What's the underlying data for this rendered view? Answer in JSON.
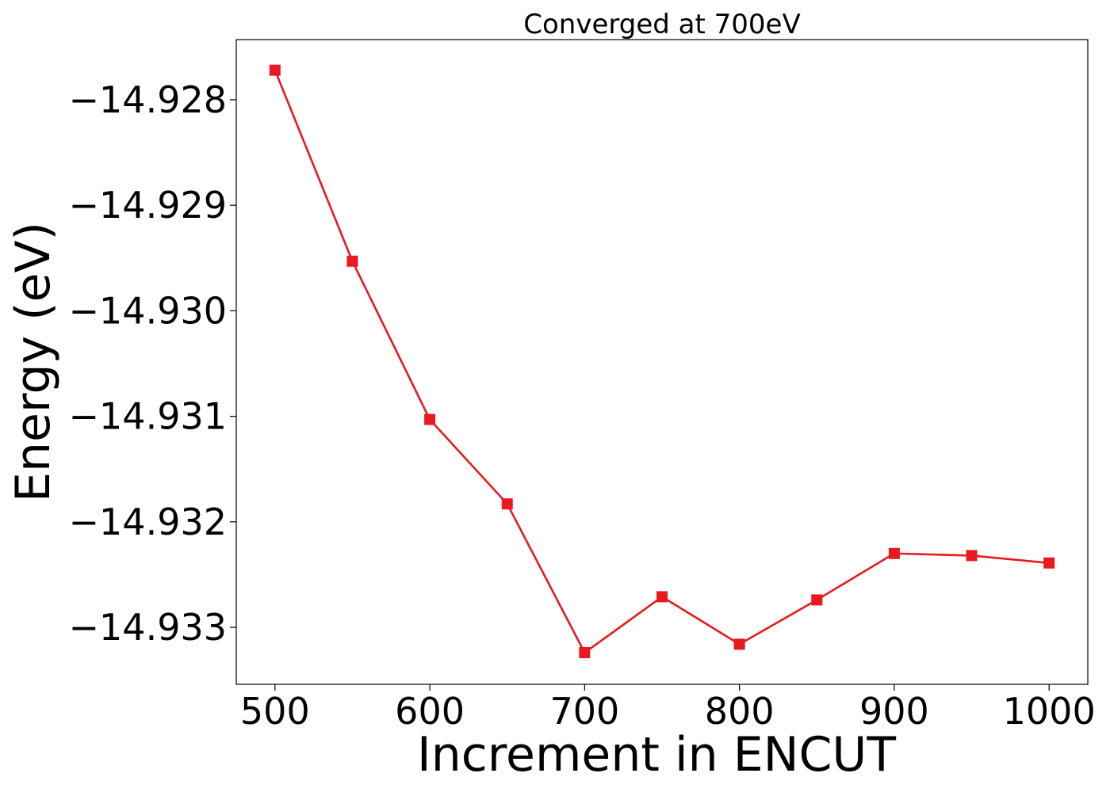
{
  "chart_data": {
    "type": "line",
    "title": "Converged at 700eV",
    "xlabel": "Increment in ENCUT",
    "ylabel": "Energy (eV)",
    "x": [
      500,
      550,
      600,
      650,
      700,
      750,
      800,
      850,
      900,
      950,
      1000
    ],
    "series": [
      {
        "values": [
          -14.92772,
          -14.92953,
          -14.93103,
          -14.93183,
          -14.93324,
          -14.93271,
          -14.93316,
          -14.93274,
          -14.9323,
          -14.93232,
          -14.93239
        ],
        "color": "#e8191f",
        "marker": "square"
      }
    ],
    "xlim": [
      475,
      1025
    ],
    "ylim": [
      -14.93354,
      -14.92743
    ],
    "xticks": [
      500,
      600,
      700,
      800,
      900,
      1000
    ],
    "yticks": [
      -14.928,
      -14.929,
      -14.93,
      -14.931,
      -14.932,
      -14.933
    ],
    "xtick_labels": [
      "500",
      "600",
      "700",
      "800",
      "900",
      "1000"
    ],
    "ytick_labels": [
      "−14.928",
      "−14.929",
      "−14.930",
      "−14.931",
      "−14.932",
      "−14.933"
    ],
    "grid": false,
    "legend": "none"
  }
}
